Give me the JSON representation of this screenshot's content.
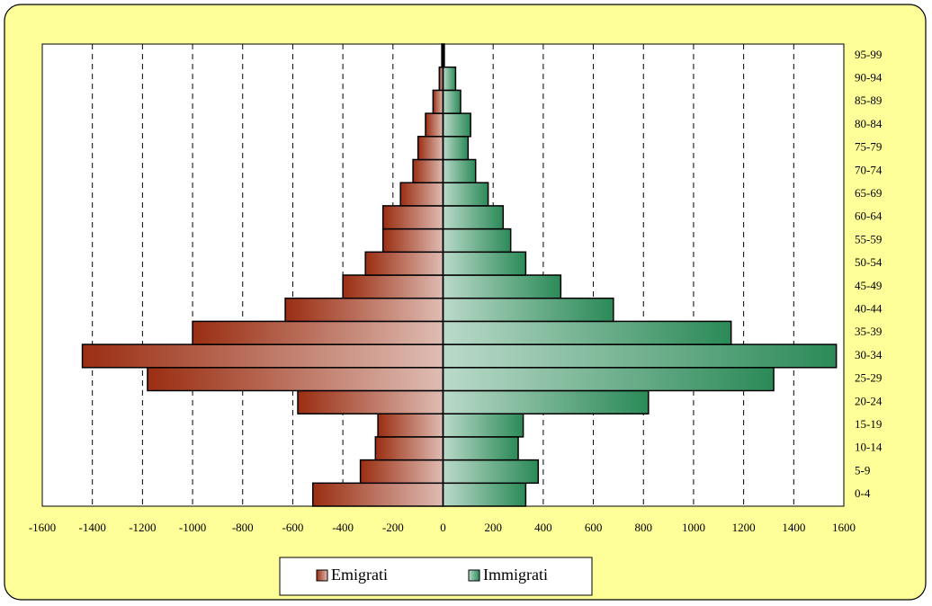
{
  "chart_data": {
    "type": "bar",
    "orientation": "horizontal",
    "categories": [
      "0-4",
      "5-9",
      "10-14",
      "15-19",
      "20-24",
      "25-29",
      "30-34",
      "35-39",
      "40-44",
      "45-49",
      "50-54",
      "55-59",
      "60-64",
      "65-69",
      "70-74",
      "75-79",
      "80-84",
      "85-89",
      "90-94",
      "95-99"
    ],
    "series": [
      {
        "name": "Emigrati",
        "color": "#9a2e12",
        "values": [
          -520,
          -330,
          -270,
          -260,
          -580,
          -1180,
          -1440,
          -1000,
          -630,
          -400,
          -310,
          -240,
          -240,
          -170,
          -120,
          -100,
          -70,
          -40,
          -15,
          -5
        ]
      },
      {
        "name": "Immigrati",
        "color": "#2b8a58",
        "values": [
          330,
          380,
          300,
          320,
          820,
          1320,
          1570,
          1150,
          680,
          470,
          330,
          270,
          240,
          180,
          130,
          100,
          110,
          70,
          50,
          5
        ]
      }
    ],
    "xlim": [
      -1600,
      1600
    ],
    "xticks": [
      -1600,
      -1400,
      -1200,
      -1000,
      -800,
      -600,
      -400,
      -200,
      0,
      200,
      400,
      600,
      800,
      1000,
      1200,
      1400,
      1600
    ],
    "grid": true,
    "legend": "bottom"
  }
}
